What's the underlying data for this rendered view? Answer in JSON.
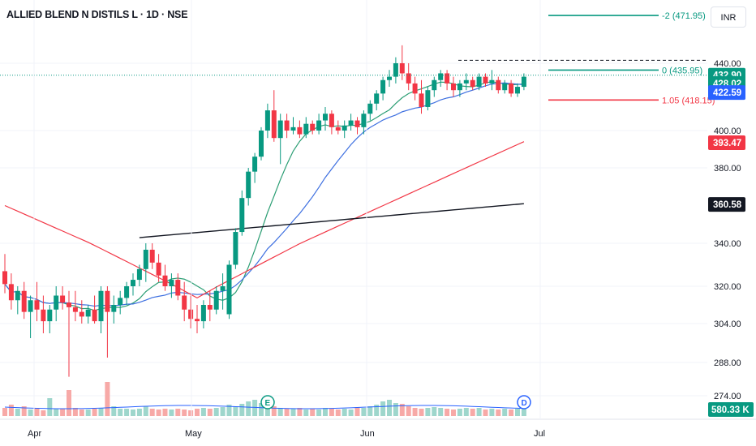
{
  "header": {
    "title": "ALLIED BLEND N DISTILS L · 1D · NSE",
    "currency": "INR"
  },
  "chart_data": {
    "type": "candlestick",
    "price_axis": {
      "ticks": [
        "440.00",
        "400.00",
        "380.00",
        "340.00",
        "320.00",
        "304.00",
        "288.00",
        "274.00"
      ]
    },
    "time_axis": {
      "labels": [
        "Apr",
        "May",
        "Jun",
        "Jul"
      ]
    },
    "fib_levels": [
      {
        "label": "-2 (471.95)",
        "value": 471.95,
        "color": "#089981"
      },
      {
        "label": "0 (435.95)",
        "value": 435.95,
        "color": "#089981"
      },
      {
        "label": "1.05 (418.15)",
        "value": 418.15,
        "color": "#f23645"
      }
    ],
    "price_badges": [
      {
        "label": "432.90",
        "value": 432.9,
        "color": "#089981"
      },
      {
        "label": "428.02",
        "value": 428.02,
        "color": "#089981"
      },
      {
        "label": "422.59",
        "value": 422.59,
        "color": "#2962ff"
      },
      {
        "label": "393.47",
        "value": 393.47,
        "color": "#f23645"
      },
      {
        "label": "360.58",
        "value": 360.58,
        "color": "#131722"
      }
    ],
    "volume_badge": {
      "label": "580.33 K",
      "color": "#089981"
    },
    "event_markers": [
      "E",
      "D"
    ],
    "candles": [
      [
        327,
        335,
        317,
        321
      ],
      [
        321,
        326,
        310,
        314
      ],
      [
        314,
        320,
        308,
        318
      ],
      [
        318,
        322,
        306,
        309
      ],
      [
        309,
        316,
        298,
        314
      ],
      [
        314,
        322,
        305,
        310
      ],
      [
        310,
        316,
        300,
        305
      ],
      [
        305,
        312,
        300,
        310
      ],
      [
        310,
        320,
        305,
        316
      ],
      [
        316,
        320,
        310,
        313
      ],
      [
        313,
        318,
        282,
        311
      ],
      [
        311,
        318,
        305,
        309
      ],
      [
        309,
        314,
        304,
        307
      ],
      [
        307,
        312,
        304,
        310
      ],
      [
        310,
        316,
        304,
        305
      ],
      [
        305,
        320,
        300,
        318
      ],
      [
        318,
        320,
        290,
        309
      ],
      [
        309,
        316,
        304,
        312
      ],
      [
        312,
        318,
        308,
        315
      ],
      [
        315,
        322,
        312,
        320
      ],
      [
        320,
        326,
        316,
        323
      ],
      [
        323,
        330,
        320,
        328
      ],
      [
        328,
        340,
        322,
        337
      ],
      [
        337,
        340,
        328,
        331
      ],
      [
        331,
        335,
        322,
        325
      ],
      [
        325,
        330,
        318,
        320
      ],
      [
        320,
        326,
        315,
        323
      ],
      [
        323,
        326,
        314,
        316
      ],
      [
        316,
        322,
        305,
        310
      ],
      [
        310,
        316,
        302,
        306
      ],
      [
        306,
        312,
        300,
        305
      ],
      [
        305,
        314,
        302,
        312
      ],
      [
        312,
        318,
        305,
        310
      ],
      [
        310,
        320,
        308,
        318
      ],
      [
        318,
        326,
        310,
        320
      ],
      [
        308,
        332,
        306,
        330
      ],
      [
        330,
        348,
        328,
        346
      ],
      [
        346,
        368,
        344,
        364
      ],
      [
        364,
        380,
        360,
        378
      ],
      [
        378,
        388,
        372,
        386
      ],
      [
        386,
        402,
        384,
        400
      ],
      [
        400,
        416,
        396,
        412
      ],
      [
        412,
        424,
        394,
        396
      ],
      [
        396,
        410,
        382,
        406
      ],
      [
        406,
        410,
        396,
        400
      ],
      [
        400,
        408,
        398,
        402
      ],
      [
        402,
        406,
        396,
        398
      ],
      [
        398,
        408,
        396,
        404
      ],
      [
        404,
        406,
        398,
        400
      ],
      [
        400,
        410,
        398,
        406
      ],
      [
        406,
        414,
        400,
        410
      ],
      [
        410,
        412,
        398,
        402
      ],
      [
        402,
        406,
        398,
        400
      ],
      [
        400,
        406,
        396,
        403
      ],
      [
        403,
        410,
        400,
        406
      ],
      [
        406,
        408,
        398,
        402
      ],
      [
        402,
        412,
        398,
        410
      ],
      [
        410,
        418,
        406,
        416
      ],
      [
        416,
        424,
        412,
        422
      ],
      [
        422,
        432,
        418,
        430
      ],
      [
        430,
        436,
        426,
        432
      ],
      [
        432,
        444,
        428,
        440
      ],
      [
        440,
        452,
        430,
        434
      ],
      [
        434,
        440,
        424,
        428
      ],
      [
        428,
        432,
        418,
        422
      ],
      [
        422,
        430,
        410,
        414
      ],
      [
        414,
        426,
        412,
        424
      ],
      [
        424,
        432,
        420,
        430
      ],
      [
        430,
        436,
        426,
        434
      ],
      [
        434,
        436,
        424,
        428
      ],
      [
        428,
        432,
        420,
        424
      ],
      [
        424,
        430,
        420,
        428
      ],
      [
        428,
        434,
        424,
        430
      ],
      [
        430,
        432,
        424,
        426
      ],
      [
        426,
        434,
        424,
        432
      ],
      [
        432,
        434,
        426,
        428
      ],
      [
        428,
        436,
        424,
        430
      ],
      [
        430,
        432,
        422,
        424
      ],
      [
        424,
        430,
        422,
        428
      ],
      [
        428,
        430,
        420,
        422
      ],
      [
        422,
        428,
        420,
        426
      ],
      [
        426,
        434,
        424,
        432
      ]
    ]
  }
}
